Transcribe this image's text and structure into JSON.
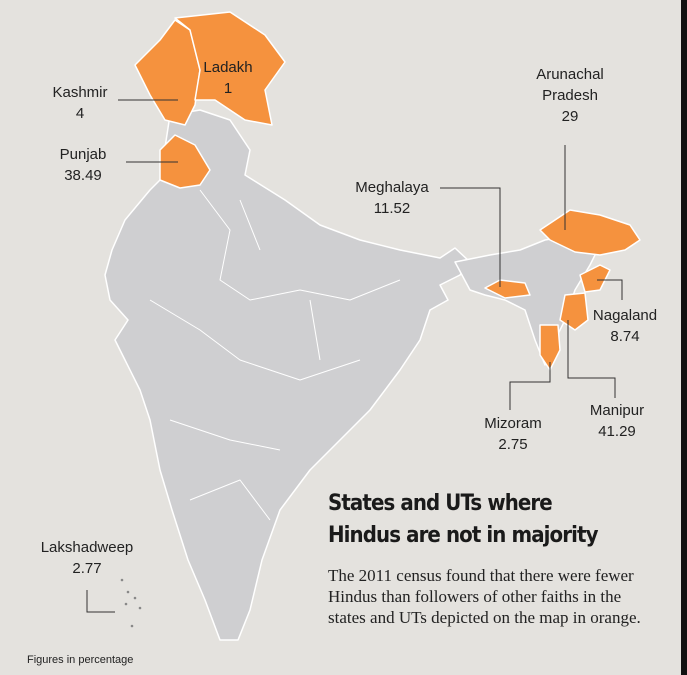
{
  "title": "States and UTs where Hindus are not in majority",
  "description": "The 2011 census found that there were fewer Hindus than followers of other faiths in the states and UTs depicted on the map in orange.",
  "footnote": "Figures in percentage",
  "regions": [
    {
      "name": "Ladakh",
      "value": 1
    },
    {
      "name": "Kashmir",
      "value": 4
    },
    {
      "name": "Punjab",
      "value": 38.49
    },
    {
      "name": "Arunachal Pradesh",
      "value": 29
    },
    {
      "name": "Meghalaya",
      "value": 11.52
    },
    {
      "name": "Nagaland",
      "value": 8.74
    },
    {
      "name": "Manipur",
      "value": 41.29
    },
    {
      "name": "Mizoram",
      "value": 2.75
    },
    {
      "name": "Lakshadweep",
      "value": 2.77
    }
  ]
}
